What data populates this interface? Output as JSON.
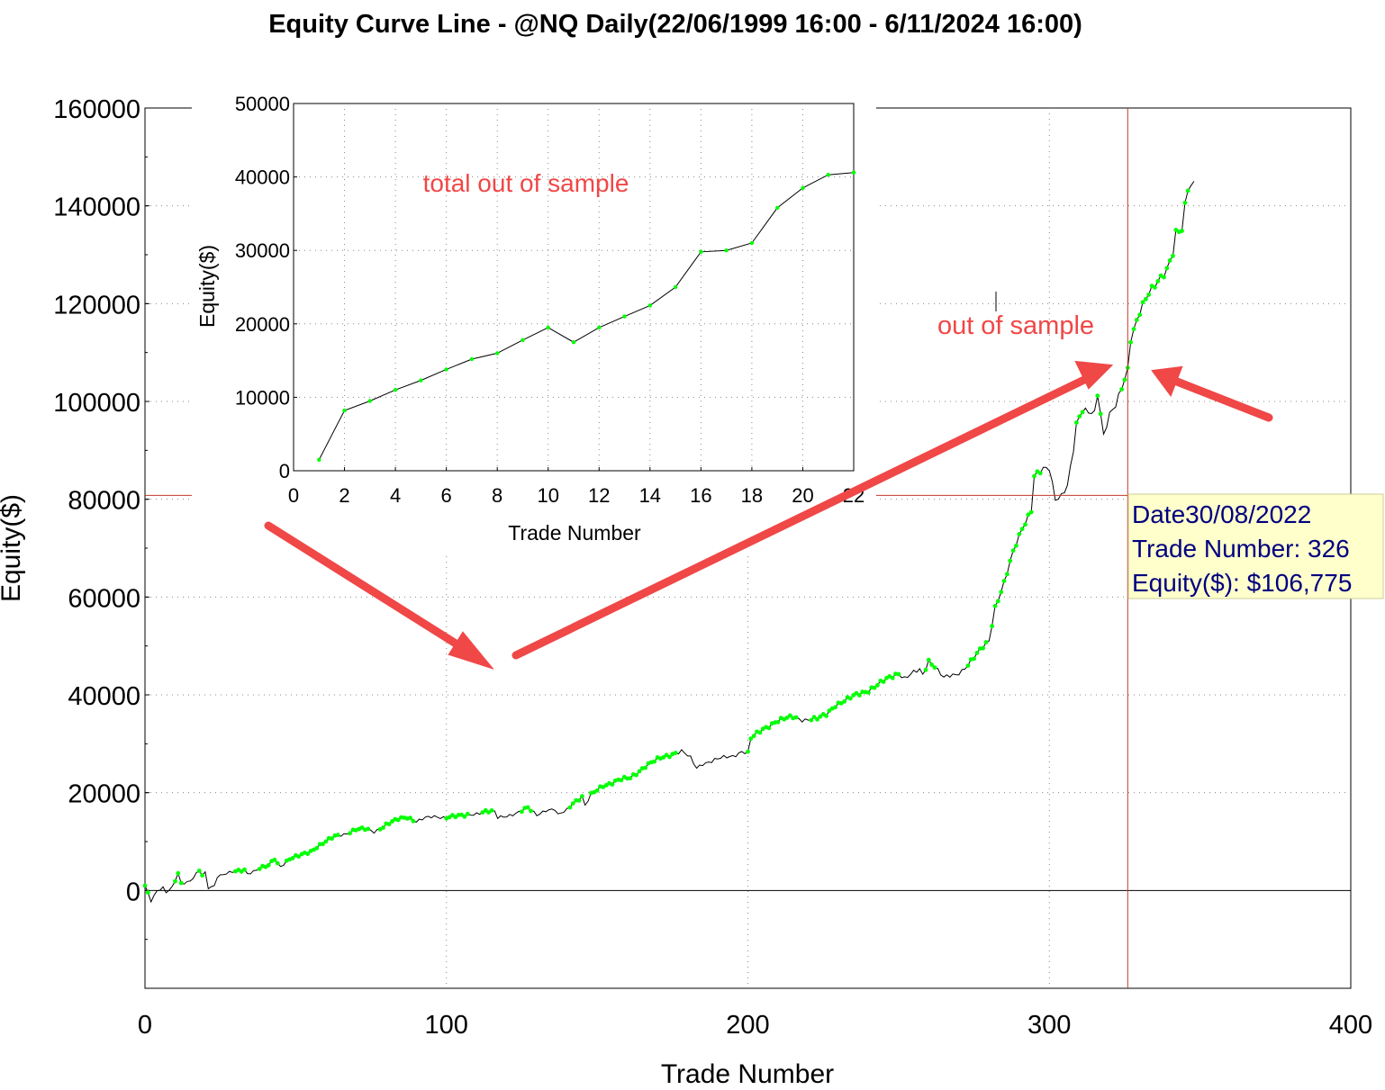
{
  "chart_data": [
    {
      "type": "line",
      "title": "Equity Curve Line - @NQ Daily(22/06/1999 16:00 - 6/11/2024 16:00)",
      "xlabel": "Trade Number",
      "ylabel": "Equity($)",
      "xlim": [
        0,
        400
      ],
      "ylim": [
        -20000,
        160000
      ],
      "xticks": [
        "0",
        "100",
        "200",
        "300",
        "400"
      ],
      "yticks": [
        "0",
        "20000",
        "40000",
        "60000",
        "80000",
        "100000",
        "120000",
        "140000",
        "160000"
      ],
      "grid": true,
      "line_color": "#000000",
      "marker_color": "#00ff00",
      "anchors": [
        [
          0,
          1000
        ],
        [
          2,
          -2000
        ],
        [
          4,
          0
        ],
        [
          6,
          500
        ],
        [
          7,
          -500
        ],
        [
          9,
          500
        ],
        [
          10,
          2000
        ],
        [
          11,
          3500
        ],
        [
          12,
          1500
        ],
        [
          15,
          2000
        ],
        [
          18,
          4000
        ],
        [
          19,
          3000
        ],
        [
          20,
          3500
        ],
        [
          21,
          500
        ],
        [
          23,
          1000
        ],
        [
          24,
          3000
        ],
        [
          27,
          3500
        ],
        [
          30,
          3800
        ],
        [
          33,
          4200
        ],
        [
          34,
          3500
        ],
        [
          38,
          4500
        ],
        [
          41,
          5000
        ],
        [
          43,
          6500
        ],
        [
          44,
          5500
        ],
        [
          45,
          5000
        ],
        [
          48,
          6500
        ],
        [
          51,
          7000
        ],
        [
          55,
          8000
        ],
        [
          57,
          9000
        ],
        [
          60,
          10000
        ],
        [
          63,
          11000
        ],
        [
          66,
          11500
        ],
        [
          70,
          12500
        ],
        [
          73,
          12500
        ],
        [
          76,
          12000
        ],
        [
          80,
          13500
        ],
        [
          84,
          14500
        ],
        [
          87,
          15000
        ],
        [
          90,
          14200
        ],
        [
          93,
          14800
        ],
        [
          96,
          15000
        ],
        [
          99,
          15000
        ],
        [
          102,
          15200
        ],
        [
          106,
          15200
        ],
        [
          110,
          15800
        ],
        [
          113,
          16200
        ],
        [
          116,
          16000
        ],
        [
          117,
          14800
        ],
        [
          120,
          15300
        ],
        [
          124,
          16000
        ],
        [
          127,
          16800
        ],
        [
          130,
          15500
        ],
        [
          133,
          16500
        ],
        [
          136,
          16500
        ],
        [
          137,
          15300
        ],
        [
          140,
          16500
        ],
        [
          142,
          18000
        ],
        [
          145,
          19200
        ],
        [
          146,
          17300
        ],
        [
          148,
          19500
        ],
        [
          152,
          21500
        ],
        [
          157,
          22500
        ],
        [
          161,
          23000
        ],
        [
          166,
          25500
        ],
        [
          171,
          27000
        ],
        [
          175,
          28000
        ],
        [
          178,
          28500
        ],
        [
          181,
          27000
        ],
        [
          183,
          25000
        ],
        [
          185,
          26000
        ],
        [
          188,
          26500
        ],
        [
          191,
          27000
        ],
        [
          195,
          27500
        ],
        [
          198,
          28500
        ],
        [
          200,
          28000
        ],
        [
          201,
          31000
        ],
        [
          205,
          33000
        ],
        [
          209,
          34500
        ],
        [
          212,
          35000
        ],
        [
          215,
          35500
        ],
        [
          218,
          35000
        ],
        [
          220,
          35000
        ],
        [
          223,
          35000
        ],
        [
          226,
          36000
        ],
        [
          229,
          38000
        ],
        [
          233,
          39000
        ],
        [
          236,
          40000
        ],
        [
          240,
          41000
        ],
        [
          243,
          42000
        ],
        [
          247,
          43500
        ],
        [
          250,
          44500
        ],
        [
          252,
          43500
        ],
        [
          255,
          44500
        ],
        [
          257,
          45000
        ],
        [
          258,
          44000
        ],
        [
          260,
          47000
        ],
        [
          262,
          46000
        ],
        [
          265,
          43500
        ],
        [
          269,
          44000
        ],
        [
          271,
          45000
        ],
        [
          274,
          47000
        ],
        [
          277,
          49000
        ],
        [
          280,
          51000
        ],
        [
          282,
          58000
        ],
        [
          285,
          63000
        ],
        [
          288,
          69000
        ],
        [
          291,
          74000
        ],
        [
          294,
          78000
        ],
        [
          295,
          85000
        ],
        [
          298,
          86000
        ],
        [
          300,
          86000
        ],
        [
          302,
          80000
        ],
        [
          304,
          81000
        ],
        [
          306,
          83000
        ],
        [
          308,
          90000
        ],
        [
          309,
          95000
        ],
        [
          311,
          98000
        ],
        [
          315,
          98000
        ],
        [
          316,
          102000
        ],
        [
          318,
          93000
        ],
        [
          320,
          97000
        ],
        [
          322,
          99000
        ],
        [
          324,
          103000
        ],
        [
          326,
          106775
        ],
        [
          327,
          113000
        ],
        [
          330,
          118000
        ],
        [
          333,
          122000
        ],
        [
          336,
          125000
        ],
        [
          339,
          127000
        ],
        [
          341,
          130000
        ],
        [
          342,
          134000
        ],
        [
          344,
          135000
        ],
        [
          345,
          140000
        ],
        [
          346,
          144000
        ],
        [
          348,
          145000
        ]
      ],
      "green_ranges": [
        [
          0,
          1
        ],
        [
          10,
          12
        ],
        [
          18,
          19
        ],
        [
          30,
          33
        ],
        [
          38,
          44
        ],
        [
          47,
          64
        ],
        [
          68,
          74
        ],
        [
          78,
          89
        ],
        [
          100,
          107
        ],
        [
          112,
          115
        ],
        [
          125,
          128
        ],
        [
          141,
          145
        ],
        [
          148,
          160
        ],
        [
          161,
          176
        ],
        [
          200,
          216
        ],
        [
          221,
          250
        ],
        [
          259,
          262
        ],
        [
          273,
          279
        ],
        [
          281,
          297
        ],
        [
          309,
          311
        ],
        [
          316,
          317
        ],
        [
          324,
          346
        ]
      ],
      "cursor": {
        "x": 326,
        "y": 80800
      },
      "tooltip": {
        "line1": "Date30/08/2022",
        "line2": "Trade Number: 326",
        "line3": "Equity($): $106,775"
      },
      "annotation": "out of sample",
      "annotation_color": "#f04747"
    },
    {
      "type": "line",
      "title": "",
      "xlabel": "Trade Number",
      "ylabel": "Equity($)",
      "xlim": [
        0,
        22
      ],
      "ylim": [
        0,
        50000
      ],
      "xticks": [
        "0",
        "2",
        "4",
        "6",
        "8",
        "10",
        "12",
        "14",
        "16",
        "18",
        "20",
        "22"
      ],
      "yticks": [
        "0",
        "10000",
        "20000",
        "30000",
        "40000",
        "50000"
      ],
      "grid": true,
      "x": [
        1,
        2,
        3,
        4,
        5,
        6,
        7,
        8,
        9,
        10,
        11,
        12,
        13,
        14,
        15,
        16,
        17,
        18,
        19,
        20,
        21,
        22
      ],
      "y": [
        1500,
        8200,
        9500,
        11000,
        12300,
        13800,
        15200,
        16000,
        17800,
        19500,
        17500,
        19500,
        21000,
        22500,
        25000,
        29800,
        30000,
        31000,
        35800,
        38500,
        40300,
        40600
      ],
      "annotation": "total out of sample",
      "annotation_color": "#f04747"
    }
  ]
}
